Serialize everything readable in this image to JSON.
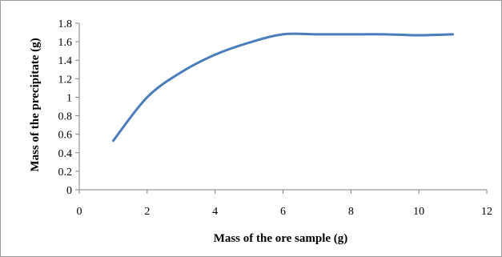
{
  "chart_data": {
    "type": "line",
    "title": "",
    "xlabel": "Mass of the ore sample (g)",
    "ylabel": "Mass of the precipitate (g)",
    "xlim": [
      0,
      12
    ],
    "ylim": [
      0,
      1.8
    ],
    "x_ticks": [
      0,
      2,
      4,
      6,
      8,
      10,
      12
    ],
    "y_ticks": [
      0,
      0.2,
      0.4,
      0.6,
      0.8,
      1,
      1.2,
      1.4,
      1.6,
      1.8
    ],
    "x_tick_labels": [
      "0",
      "2",
      "4",
      "6",
      "8",
      "10",
      "12"
    ],
    "y_tick_labels": [
      "0",
      "0.2",
      "0.4",
      "0.6",
      "0.8",
      "1",
      "1.2",
      "1.4",
      "1.6",
      "1.8"
    ],
    "grid": false,
    "legend": "none",
    "series": [
      {
        "color": "#4a7ebb",
        "x": [
          1,
          2,
          3,
          4,
          5,
          6,
          7,
          8,
          9,
          10,
          11
        ],
        "y": [
          0.53,
          1.0,
          1.27,
          1.46,
          1.59,
          1.68,
          1.68,
          1.68,
          1.68,
          1.67,
          1.68
        ]
      }
    ]
  }
}
